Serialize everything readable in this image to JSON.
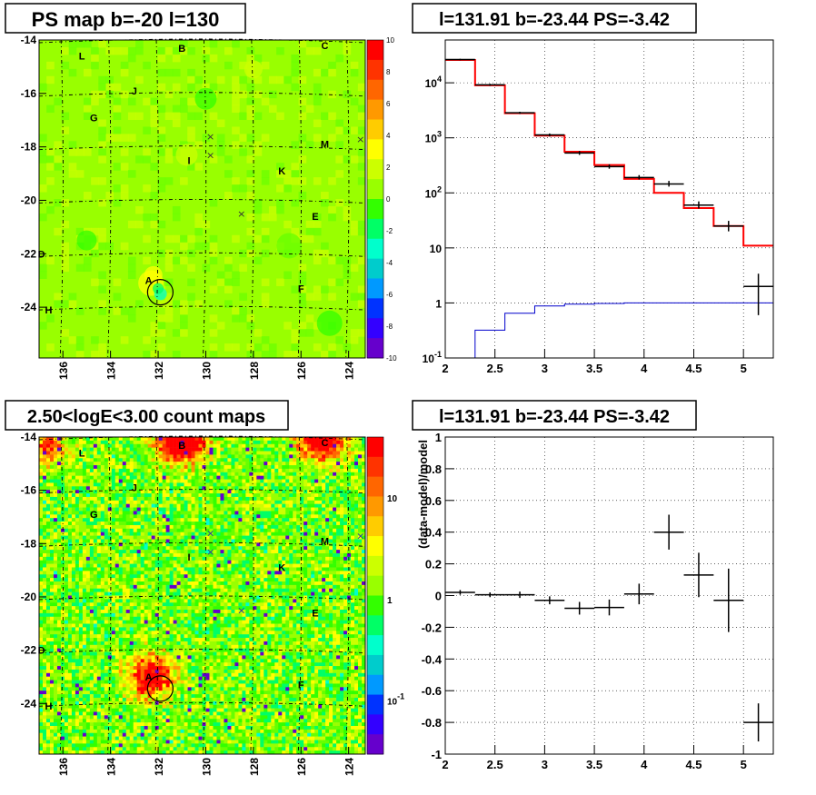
{
  "panels": {
    "tl_title": "PS map b=-20 l=130",
    "tr_title": "l=131.91 b=-23.44 PS=-3.42",
    "bl_title": "2.50<logE<3.00 count maps",
    "br_title": "l=131.91 b=-23.44 PS=-3.42"
  },
  "chart_data": [
    {
      "type": "heatmap",
      "title": "PS map b=-20 l=130",
      "x_tick_labels": [
        "136",
        "134",
        "132",
        "130",
        "128",
        "126",
        "124"
      ],
      "y_tick_labels": [
        "-14",
        "-16",
        "-18",
        "-20",
        "-22",
        "-24"
      ],
      "xlim": [
        137,
        123.3
      ],
      "ylim": [
        -25.9,
        -14
      ],
      "colorbar_ticks": [
        "10",
        "8",
        "6",
        "4",
        "2",
        "0",
        "-2",
        "-4",
        "-6",
        "-8",
        "-10"
      ],
      "colorbar_range": [
        -10,
        10
      ],
      "background_value": 0.5,
      "colors": {
        "scale": [
          "#6600cc",
          "#3300ff",
          "#0033ff",
          "#0099ff",
          "#00cccc",
          "#00ffcc",
          "#00ff66",
          "#33ff00",
          "#66ff00",
          "#99ff00",
          "#ccff00",
          "#ffff00",
          "#ffcc00",
          "#ff9900",
          "#ff6600",
          "#ff3300",
          "#ff0000"
        ]
      },
      "sources": [
        {
          "label": "A",
          "l": 132.4,
          "b": -23.0
        },
        {
          "label": "B",
          "l": 131.0,
          "b": -14.3
        },
        {
          "label": "C",
          "l": 125.0,
          "b": -14.2
        },
        {
          "label": "D",
          "l": 136.9,
          "b": -22.0
        },
        {
          "label": "E",
          "l": 125.4,
          "b": -20.6
        },
        {
          "label": "F",
          "l": 126.0,
          "b": -23.3
        },
        {
          "label": "G",
          "l": 134.7,
          "b": -16.9
        },
        {
          "label": "H",
          "l": 136.6,
          "b": -24.1
        },
        {
          "label": "I",
          "l": 130.7,
          "b": -18.5
        },
        {
          "label": "J",
          "l": 133.0,
          "b": -15.9
        },
        {
          "label": "K",
          "l": 126.8,
          "b": -18.9
        },
        {
          "label": "L",
          "l": 135.2,
          "b": -14.6
        },
        {
          "label": "M",
          "l": 125.0,
          "b": -17.9
        }
      ],
      "crosses": [
        {
          "l": 129.8,
          "b": -17.6
        },
        {
          "l": 129.8,
          "b": -18.3
        },
        {
          "l": 128.5,
          "b": -20.5
        },
        {
          "l": 123.5,
          "b": -17.7
        }
      ],
      "circle": {
        "l": 131.91,
        "b": -23.44
      }
    },
    {
      "type": "line",
      "title": "l=131.91 b=-23.44 PS=-3.42",
      "xlim": [
        2,
        5.3
      ],
      "ylim": [
        0.1,
        60000
      ],
      "y_scale": "log",
      "grid": true,
      "x_tick_labels": [
        "2",
        "2.5",
        "3",
        "3.5",
        "4",
        "4.5",
        "5"
      ],
      "y_tick_labels": [
        "10^-1",
        "1",
        "10",
        "10^2",
        "10^3",
        "10^4"
      ],
      "bin_edges": [
        2,
        2.3,
        2.6,
        2.9,
        3.2,
        3.5,
        3.8,
        4.1,
        4.4,
        4.7,
        5,
        5.3
      ],
      "series": [
        {
          "color": "#ff0000",
          "style": "step",
          "values": [
            26000,
            9000,
            2800,
            1100,
            560,
            320,
            180,
            100,
            53,
            25,
            11
          ]
        },
        {
          "color": "#0000cc",
          "style": "step",
          "values": [
            0.1,
            0.32,
            0.65,
            0.88,
            0.95,
            0.98,
            1.0,
            1.0,
            1.0,
            1.0,
            1.0
          ]
        },
        {
          "color": "#000000",
          "style": "errorbar",
          "points": [
            {
              "x": 2.15,
              "y": 26500,
              "lo": 25700,
              "hi": 27300
            },
            {
              "x": 2.45,
              "y": 9200,
              "lo": 8800,
              "hi": 9600
            },
            {
              "x": 2.75,
              "y": 2850,
              "lo": 2720,
              "hi": 2980
            },
            {
              "x": 3.05,
              "y": 1130,
              "lo": 1060,
              "hi": 1200
            },
            {
              "x": 3.35,
              "y": 530,
              "lo": 490,
              "hi": 575
            },
            {
              "x": 3.65,
              "y": 300,
              "lo": 275,
              "hi": 330
            },
            {
              "x": 3.95,
              "y": 190,
              "lo": 175,
              "hi": 210
            },
            {
              "x": 4.25,
              "y": 145,
              "lo": 130,
              "hi": 165
            },
            {
              "x": 4.55,
              "y": 60,
              "lo": 52,
              "hi": 70
            },
            {
              "x": 4.85,
              "y": 25,
              "lo": 20,
              "hi": 31
            },
            {
              "x": 5.15,
              "y": 2,
              "lo": 0.6,
              "hi": 3.4
            }
          ]
        }
      ]
    },
    {
      "type": "heatmap",
      "title": "2.50<logE<3.00 count maps",
      "x_tick_labels": [
        "136",
        "134",
        "132",
        "130",
        "128",
        "126",
        "124"
      ],
      "y_tick_labels": [
        "-14",
        "-16",
        "-18",
        "-20",
        "-22",
        "-24"
      ],
      "xlim": [
        137,
        123.3
      ],
      "ylim": [
        -25.9,
        -14
      ],
      "colorbar_ticks": [
        "10",
        "1",
        "10^-1"
      ],
      "colorbar_range": [
        0.03,
        40
      ],
      "colorbar_scale": "log"
    },
    {
      "type": "scatter",
      "title": "l=131.91 b=-23.44 PS=-3.42",
      "ylabel": "(data-model)/model",
      "xlim": [
        2,
        5.3
      ],
      "ylim": [
        -1,
        1
      ],
      "grid": true,
      "x_tick_labels": [
        "2",
        "2.5",
        "3",
        "3.5",
        "4",
        "4.5",
        "5"
      ],
      "y_tick_labels": [
        "1",
        "0.8",
        "0.6",
        "0.4",
        "0.2",
        "0",
        "-0.2",
        "-0.4",
        "-0.6",
        "-0.8",
        "-1"
      ],
      "points": [
        {
          "x": 2.15,
          "y": 0.02,
          "err": 0.015
        },
        {
          "x": 2.45,
          "y": 0.005,
          "err": 0.015
        },
        {
          "x": 2.75,
          "y": 0.005,
          "err": 0.02
        },
        {
          "x": 3.05,
          "y": -0.03,
          "err": 0.025
        },
        {
          "x": 3.35,
          "y": -0.08,
          "err": 0.04
        },
        {
          "x": 3.65,
          "y": -0.075,
          "err": 0.05
        },
        {
          "x": 3.95,
          "y": 0.01,
          "err": 0.065
        },
        {
          "x": 4.25,
          "y": 0.4,
          "err": 0.11
        },
        {
          "x": 4.55,
          "y": 0.13,
          "err": 0.14
        },
        {
          "x": 4.85,
          "y": -0.03,
          "err": 0.2
        },
        {
          "x": 5.15,
          "y": -0.8,
          "err": 0.12
        }
      ]
    }
  ]
}
